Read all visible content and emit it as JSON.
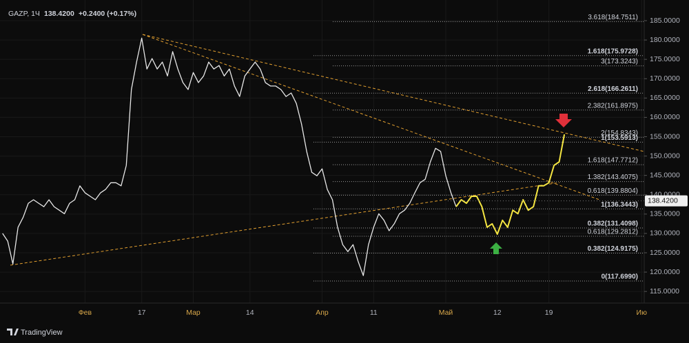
{
  "chart_data": {
    "type": "line",
    "symbol": "GAZP, 1Ч",
    "last_price": {
      "value": 138.42,
      "label": "138.4200"
    },
    "change": "+0.2400 (+0.17%)",
    "brand": "TradingView",
    "categories": [
      null,
      null,
      null,
      null,
      null,
      null,
      null,
      null,
      null,
      null,
      null,
      null,
      null,
      null,
      null,
      null,
      "Фев",
      null,
      null,
      null,
      null,
      null,
      null,
      null,
      null,
      null,
      null,
      "17",
      null,
      null,
      null,
      null,
      null,
      null,
      null,
      null,
      null,
      "Мар",
      null,
      null,
      null,
      null,
      null,
      null,
      null,
      null,
      null,
      null,
      "14",
      null,
      null,
      null,
      null,
      null,
      null,
      null,
      null,
      null,
      null,
      null,
      null,
      null,
      "Апр",
      null,
      null,
      null,
      null,
      null,
      null,
      null,
      null,
      null,
      "11",
      null,
      null,
      null,
      null,
      null,
      null,
      null,
      null,
      null,
      null,
      null,
      null,
      null,
      "Май",
      null,
      null,
      null,
      null,
      null,
      null,
      null,
      null,
      null,
      "12",
      null,
      null,
      null,
      null,
      null,
      null,
      null,
      null,
      null,
      "19",
      null,
      null,
      null,
      null,
      null,
      null,
      null,
      null,
      null,
      null,
      null,
      null,
      null,
      null,
      null,
      null,
      null,
      "Ию"
    ],
    "series": [
      {
        "color": "#e8e8e8",
        "values": [
          130,
          128,
          122.1,
          131.6,
          134.2,
          137.8,
          138.7,
          137.8,
          136.9,
          138.7,
          136.9,
          136,
          135.1,
          137.8,
          138.7,
          142.3,
          140.5,
          139.6,
          138.7,
          140.5,
          141.4,
          143.1,
          143.1,
          142.3,
          147.6,
          167.2,
          174.3,
          180.5,
          172.5,
          175.2,
          172.5,
          174.3,
          170.7,
          177,
          172.5,
          169,
          167.2,
          171.6,
          169,
          170.7,
          174.3,
          172.5,
          173.4,
          170.7,
          172.5,
          168.1,
          165.4,
          170.7,
          172.5,
          174.3,
          172.5,
          169,
          168.1,
          168.1,
          167.2,
          165.4,
          166.3,
          163.6,
          158.3,
          151.2,
          145.8,
          144.9,
          146.7,
          141.4,
          138.7,
          131.6,
          127.1,
          125.3,
          127.1,
          122.7,
          119.1,
          127.1,
          131.6,
          135.1,
          133.4,
          130.7,
          132.5,
          135.1,
          136,
          137.8,
          140.5,
          143.1,
          144,
          148.5,
          152,
          151.2,
          144.9,
          140.5,
          136.9,
          null,
          null,
          null,
          null,
          null,
          null,
          null,
          null,
          null,
          null,
          null,
          null,
          null,
          null,
          null,
          null,
          null,
          null,
          null,
          null,
          null,
          null,
          null,
          null,
          null,
          null,
          null,
          null,
          null,
          null,
          null,
          null,
          null,
          null,
          null,
          null
        ]
      },
      {
        "color": "#f5e642",
        "values": [
          null,
          null,
          null,
          null,
          null,
          null,
          null,
          null,
          null,
          null,
          null,
          null,
          null,
          null,
          null,
          null,
          null,
          null,
          null,
          null,
          null,
          null,
          null,
          null,
          null,
          null,
          null,
          null,
          null,
          null,
          null,
          null,
          null,
          null,
          null,
          null,
          null,
          null,
          null,
          null,
          null,
          null,
          null,
          null,
          null,
          null,
          null,
          null,
          null,
          null,
          null,
          null,
          null,
          null,
          null,
          null,
          null,
          null,
          null,
          null,
          null,
          null,
          null,
          null,
          null,
          null,
          null,
          null,
          null,
          null,
          null,
          null,
          null,
          null,
          null,
          null,
          null,
          null,
          null,
          null,
          null,
          null,
          null,
          null,
          null,
          null,
          null,
          null,
          136.9,
          138.7,
          137.8,
          139.6,
          139.6,
          136.9,
          131.6,
          132.5,
          129.8,
          133.4,
          131.6,
          136,
          135.1,
          138.7,
          136,
          136.9,
          142.3,
          142.3,
          143.1,
          147.6,
          148.5,
          155.6,
          null,
          null,
          null,
          null,
          null,
          null,
          null,
          null,
          null,
          null,
          null,
          null,
          null,
          null,
          null
        ]
      }
    ],
    "ylim": [
      112,
      190.34
    ],
    "yticks": [
      {
        "value": 115,
        "label": "115.0000"
      },
      {
        "value": 120,
        "label": "120.0000"
      },
      {
        "value": 125,
        "label": "125.0000"
      },
      {
        "value": 130,
        "label": "130.0000"
      },
      {
        "value": 135,
        "label": "135.0000"
      },
      {
        "value": 140,
        "label": "140.0000"
      },
      {
        "value": 145,
        "label": "145.0000"
      },
      {
        "value": 150,
        "label": "150.0000"
      },
      {
        "value": 155,
        "label": "155.0000"
      },
      {
        "value": 160,
        "label": "160.0000"
      },
      {
        "value": 165,
        "label": "165.0000"
      },
      {
        "value": 170,
        "label": "170.0000"
      },
      {
        "value": 175,
        "label": "175.0000"
      },
      {
        "value": 180,
        "label": "180.0000"
      },
      {
        "value": 185,
        "label": "185.0000"
      }
    ],
    "fib_levels": [
      {
        "value": 184.7511,
        "label": "3.618(184.7511)",
        "bold": false
      },
      {
        "value": 175.9728,
        "label": "1.618(175.9728)",
        "bold": true
      },
      {
        "value": 173.3243,
        "label": "3(173.3243)",
        "bold": false
      },
      {
        "value": 166.2611,
        "label": "2.618(166.2611)",
        "bold": true
      },
      {
        "value": 161.8975,
        "label": "2.382(161.8975)",
        "bold": false
      },
      {
        "value": 154.8343,
        "label": "2(154.8343)",
        "bold": false
      },
      {
        "value": 153.5913,
        "label": "1(153.5913)",
        "bold": true
      },
      {
        "value": 147.7712,
        "label": "1.618(147.7712)",
        "bold": false
      },
      {
        "value": 143.4075,
        "label": "1.382(143.4075)",
        "bold": false
      },
      {
        "value": 139.8804,
        "label": "0.618(139.8804)",
        "bold": false
      },
      {
        "value": 136.3443,
        "label": "1(136.3443)",
        "bold": true
      },
      {
        "value": 131.4098,
        "label": "0.382(131.4098)",
        "bold": true
      },
      {
        "value": 129.2812,
        "label": "0.618(129.2812)",
        "bold": false
      },
      {
        "value": 124.9175,
        "label": "0.382(124.9175)",
        "bold": true
      },
      {
        "value": 117.699,
        "label": "0(117.6990)",
        "bold": true
      }
    ],
    "grid": true
  }
}
